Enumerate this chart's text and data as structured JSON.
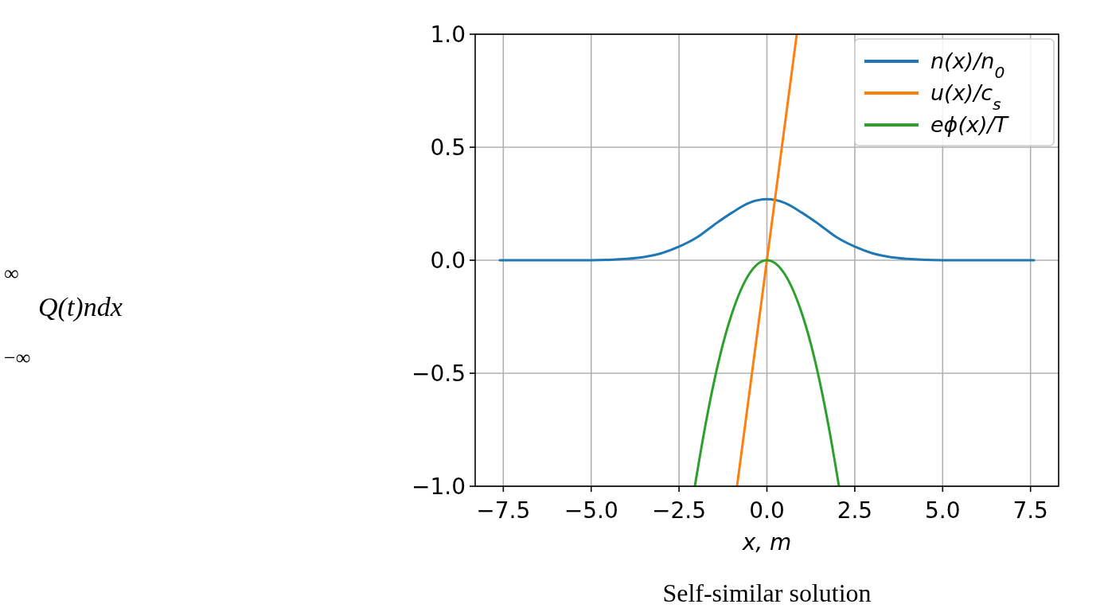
{
  "chart_data": {
    "type": "line",
    "xlabel": "x, m",
    "annotations": [
      "∞",
      "Q(t)ndx",
      "−∞",
      "Self-similar solution"
    ],
    "xlim": [
      -8.3,
      8.3
    ],
    "ylim": [
      -1,
      1
    ],
    "xticks": [
      -7.5,
      {
        "value": -5,
        "label": "−5.0"
      },
      -2.5,
      {
        "value": 0,
        "label": "0.0"
      },
      2.5,
      {
        "value": 5,
        "label": "5.0"
      },
      7.5
    ],
    "yticks": [
      {
        "value": -1,
        "label": "−1.0"
      },
      -0.5,
      {
        "value": 0,
        "label": "0.0"
      },
      0.5,
      {
        "value": 1,
        "label": "1.0"
      }
    ],
    "grid": true,
    "legend": "top right",
    "line_style": "solid",
    "marker": "none",
    "series": [
      {
        "name": "n(x)/n$_{0}$",
        "color": "#1f77b4",
        "x": [
          -7.6,
          -6,
          -5,
          -4,
          -3.5,
          -3,
          -2.5,
          -2,
          -1.5,
          -1,
          -0.5,
          0,
          0.5,
          1,
          1.5,
          2,
          2.5,
          3,
          3.5,
          4,
          5,
          6,
          7.6
        ],
        "values": [
          0,
          0,
          0,
          0.006,
          0.014,
          0.031,
          0.06,
          0.1,
          0.157,
          0.21,
          0.254,
          0.27,
          0.254,
          0.21,
          0.157,
          0.1,
          0.06,
          0.031,
          0.014,
          0.006,
          0,
          0,
          0
        ]
      },
      {
        "name": "u(x)/c$_{s}$",
        "color": "#ff7f0e",
        "x": [
          -0.85,
          0.85
        ],
        "values": [
          -1,
          1
        ]
      },
      {
        "name": "eϕ(x)/T",
        "color": "#2ca02c",
        "x": [
          -2.05,
          -1.75,
          -1.5,
          -1.25,
          -1,
          -0.5,
          0,
          0.5,
          1,
          1.25,
          1.5,
          1.75,
          2.05
        ],
        "values": [
          -1,
          -0.73,
          -0.535,
          -0.37,
          -0.238,
          -0.06,
          0,
          -0.06,
          -0.238,
          -0.37,
          -0.535,
          -0.73,
          -1
        ]
      }
    ]
  }
}
